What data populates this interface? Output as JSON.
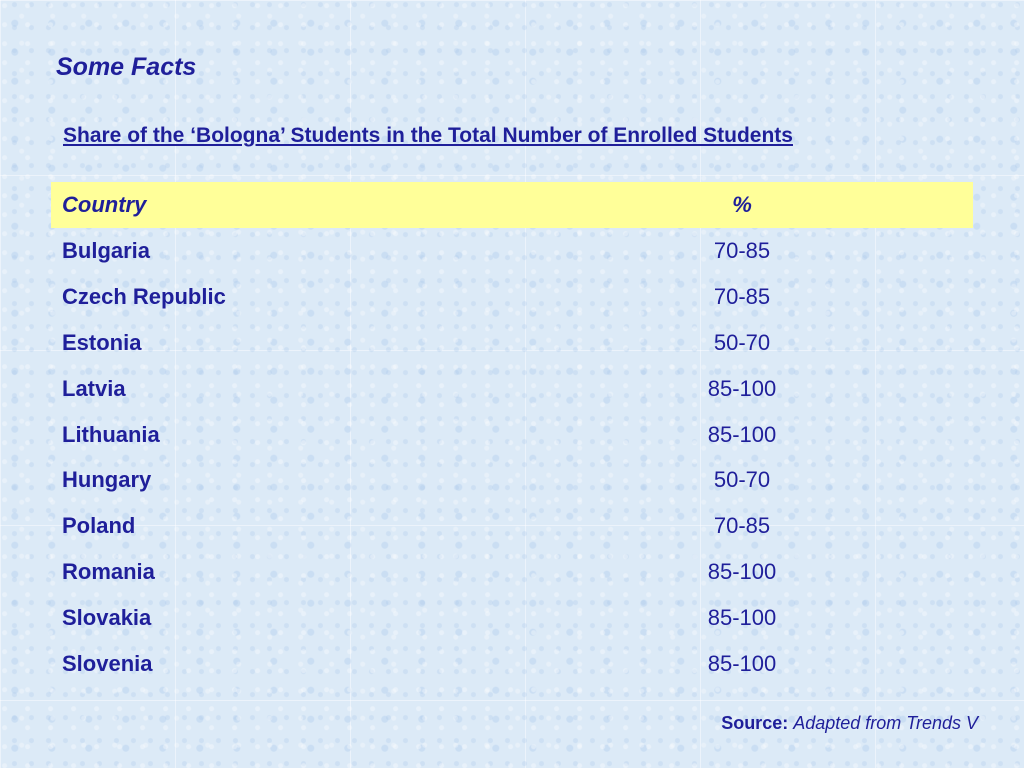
{
  "slide": {
    "title": "Some Facts",
    "heading": "Share of the ‘Bologna’ Students in the Total Number of Enrolled Students"
  },
  "table": {
    "header": {
      "country": "Country",
      "percent": "%"
    },
    "rows": [
      {
        "country": "Bulgaria",
        "percent": "70-85"
      },
      {
        "country": "Czech Republic",
        "percent": "70-85"
      },
      {
        "country": "Estonia",
        "percent": "50-70"
      },
      {
        "country": "Latvia",
        "percent": "85-100"
      },
      {
        "country": "Lithuania",
        "percent": "85-100"
      },
      {
        "country": "Hungary",
        "percent": "50-70"
      },
      {
        "country": "Poland",
        "percent": "70-85"
      },
      {
        "country": "Romania",
        "percent": "85-100"
      },
      {
        "country": "Slovakia",
        "percent": "85-100"
      },
      {
        "country": "Slovenia",
        "percent": "85-100"
      }
    ]
  },
  "source": {
    "label": "Source:",
    "text": "Adapted from Trends V"
  },
  "colors": {
    "text": "#1f1f9a",
    "header_background": "#ffff99",
    "page_background": "#dceaf7"
  }
}
